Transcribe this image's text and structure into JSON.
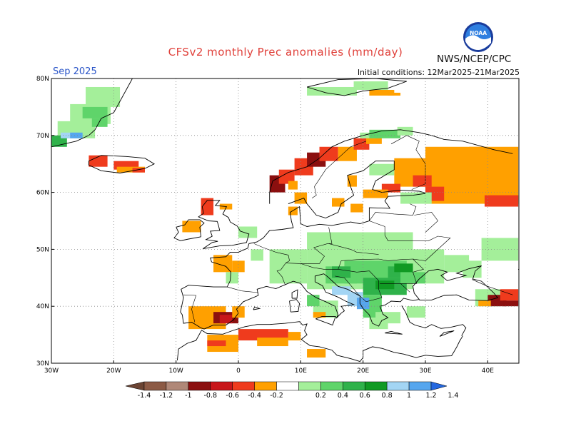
{
  "header": {
    "title": "CFSv2 monthly Prec anomalies (mm/day)",
    "agency": "NWS/NCEP/CPC",
    "logo_text": "NOAA",
    "month": "Sep 2025",
    "initial_conditions": "Initial conditions: 12Mar2025-21Mar2025"
  },
  "map": {
    "lon_range": [
      -30,
      45
    ],
    "lat_range": [
      30,
      80
    ],
    "lat_labels": [
      "30N",
      "40N",
      "50N",
      "60N",
      "70N",
      "80N"
    ],
    "lon_labels": [
      "30W",
      "20W",
      "10W",
      "0",
      "10E",
      "20E",
      "30E",
      "40E"
    ],
    "grid_style": "dotted"
  },
  "legend": {
    "labels": [
      "-1.4",
      "-1.2",
      "-1",
      "-0.8",
      "-0.6",
      "-0.4",
      "-0.2",
      "0.2",
      "0.4",
      "0.6",
      "0.8",
      "1",
      "1.2",
      "1.4"
    ],
    "colors": {
      "lt_-1.4": "#6b4433",
      "-1.4_-1.2": "#8c5a45",
      "-1.2_-1": "#b08878",
      "-1_-0.8": "#8b0f0f",
      "-0.8_-0.6": "#c8161a",
      "-0.6_-0.4": "#ef3b1d",
      "-0.4_-0.2": "#ffa000",
      "-0.2_0.2": "#ffffff",
      "0.2_0.4": "#a4ef9a",
      "0.4_0.6": "#5fd46a",
      "0.6_0.8": "#2fb24a",
      "0.8_1": "#109a23",
      "1_1.2": "#a3d5f4",
      "1.2_1.4": "#56a6ee",
      "gt_1.4": "#2468e0"
    }
  },
  "anomalies": [
    {
      "region": "Greenland coast",
      "level": "0.2_0.4"
    },
    {
      "region": "Greenland coast",
      "level": "0.4_0.6"
    },
    {
      "region": "Greenland south tip",
      "level": "1.2_1.4"
    },
    {
      "region": "Svalbard",
      "level": "0.2_0.4"
    },
    {
      "region": "Iceland",
      "level": "-0.6_-0.4"
    },
    {
      "region": "Iceland",
      "level": "-0.4_-0.2"
    },
    {
      "region": "Norway coast",
      "level": "-1_-0.8"
    },
    {
      "region": "Norway coast",
      "level": "-0.6_-0.4"
    },
    {
      "region": "Western Russia",
      "level": "-0.4_-0.2"
    },
    {
      "region": "Western Russia",
      "level": "-0.6_-0.4"
    },
    {
      "region": "Central and Eastern Europe",
      "level": "0.2_0.4"
    },
    {
      "region": "Balkans and Ukraine",
      "level": "0.4_0.6"
    },
    {
      "region": "Adriatic",
      "level": "1.2_1.4"
    },
    {
      "region": "Southern Iberia",
      "level": "-0.4_-0.2"
    },
    {
      "region": "North Africa",
      "level": "-0.6_-0.4"
    },
    {
      "region": "Caucasus",
      "level": "-1_-0.8"
    }
  ]
}
